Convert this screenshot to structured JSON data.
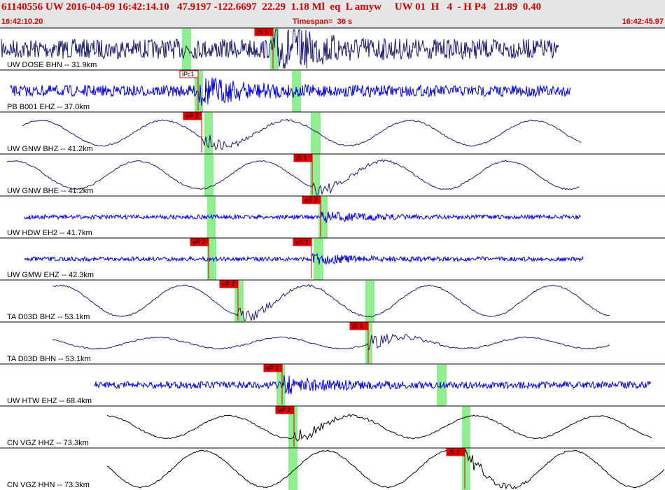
{
  "header": {
    "title": "61140556 UW 2016-04-09 16:42:14.10   47.9197 -122.6697  22.29  1.18 Ml  eq  L amyw     UW 01  H   4  - H P4   21.89  0.40",
    "start_time": "16:42:10.20",
    "timespan": "Timespan=  36 s",
    "end_time": "16:42:45.97"
  },
  "colors": {
    "title": "#cc0000",
    "dark_trace": "#1a1a6e",
    "blue_trace": "#0000dd",
    "black_trace": "#000000",
    "pick": "#e00000",
    "window": "#90ee90"
  },
  "traces": [
    {
      "label": "UW DOSE BHN -- 31.9km",
      "color": "dark",
      "style": "noise",
      "amp": 14,
      "start": 2,
      "end": 798,
      "windows": [
        [
          260,
          273
        ],
        [
          386,
          398
        ]
      ],
      "picks": [
        {
          "text": "iS 1",
          "x": 390
        }
      ]
    },
    {
      "label": "PB B001 EHZ -- 37.0km",
      "color": "blue",
      "style": "noise",
      "amp": 8,
      "start": 15,
      "end": 815,
      "windows": [
        [
          278,
          290
        ],
        [
          417,
          430
        ]
      ],
      "picks": [
        {
          "text": "iPc1",
          "x": 283,
          "outline": true
        }
      ]
    },
    {
      "label": "UW GNW BHZ -- 41.2km",
      "color": "dark",
      "style": "wave",
      "amp": 18,
      "start": 32,
      "end": 830,
      "windows": [
        [
          292,
          304
        ],
        [
          444,
          458
        ]
      ],
      "picks": [
        {
          "text": "eP 2",
          "x": 288
        }
      ]
    },
    {
      "label": "UW GNW BHE -- 41.2km",
      "color": "dark",
      "style": "wave",
      "amp": 20,
      "start": 10,
      "end": 828,
      "windows": [
        [
          292,
          305
        ],
        [
          443,
          457
        ]
      ],
      "picks": [
        {
          "text": "iS 1",
          "x": 446
        }
      ]
    },
    {
      "label": "UW HDW EH2 -- 41.7km",
      "color": "blue",
      "style": "noise",
      "amp": 3,
      "start": 35,
      "end": 830,
      "windows": [
        [
          296,
          308
        ],
        [
          455,
          468
        ]
      ],
      "picks": [
        {
          "text": "eS 2",
          "x": 458
        }
      ]
    },
    {
      "label": "UW GMW EHZ -- 42.3km",
      "color": "blue",
      "style": "noise",
      "amp": 3,
      "start": 35,
      "end": 833,
      "windows": [
        [
          296,
          309
        ],
        [
          448,
          462
        ]
      ],
      "picks": [
        {
          "text": "eP 2",
          "x": 298
        },
        {
          "text": "eS 2",
          "x": 445
        }
      ]
    },
    {
      "label": "TA D03D BHZ -- 53.1km",
      "color": "dark",
      "style": "wave",
      "amp": 22,
      "start": 75,
      "end": 872,
      "windows": [
        [
          335,
          348
        ],
        [
          522,
          535
        ]
      ],
      "picks": [
        {
          "text": "eP 2",
          "x": 340
        }
      ]
    },
    {
      "label": "TA D03D BHN -- 53.1km",
      "color": "dark",
      "style": "wave",
      "amp": 8,
      "start": 75,
      "end": 872,
      "windows": [
        [
          522,
          532
        ]
      ],
      "picks": [
        {
          "text": "iS 1",
          "x": 526
        }
      ]
    },
    {
      "label": "UW HTW EHZ -- 68.4km",
      "color": "blue",
      "style": "noise",
      "amp": 5,
      "start": 135,
      "end": 930,
      "windows": [
        [
          395,
          407
        ],
        [
          624,
          638
        ]
      ],
      "picks": [
        {
          "text": "eP 2",
          "x": 403
        }
      ]
    },
    {
      "label": "CN VGZ HHZ -- 73.3km",
      "color": "black",
      "style": "wave",
      "amp": 16,
      "start": 153,
      "end": 932,
      "windows": [
        [
          412,
          425
        ],
        [
          660,
          672
        ]
      ],
      "picks": [
        {
          "text": "eP 2",
          "x": 420
        }
      ]
    },
    {
      "label": "CN VGZ HHN -- 73.3km",
      "color": "black",
      "style": "wave",
      "amp": 26,
      "start": 153,
      "end": 950,
      "windows": [
        [
          412,
          425
        ],
        [
          660,
          672
        ]
      ],
      "picks": [
        {
          "text": "iS 1",
          "x": 664
        }
      ]
    }
  ]
}
